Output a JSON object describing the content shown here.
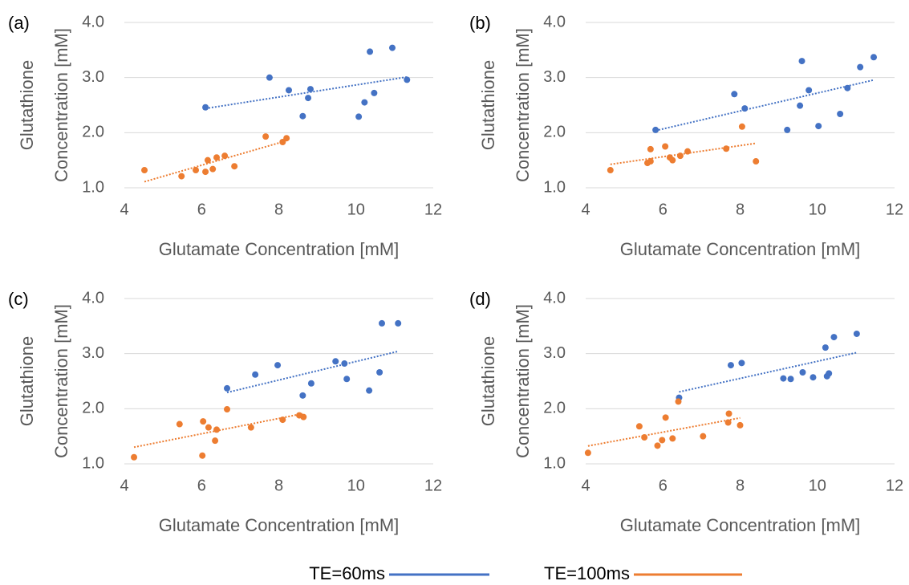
{
  "chart_data": [
    {
      "type": "scatter",
      "panel_label": "(a)",
      "xlabel": "Glutamate Concentration [mM]",
      "ylabel": [
        "Glutathione",
        "Concentration [mM]"
      ],
      "xlim": [
        4,
        12
      ],
      "ylim": [
        1,
        4
      ],
      "xticks": [
        4,
        6,
        8,
        10,
        12
      ],
      "yticks": [
        {
          "value": 1,
          "label": "1.0"
        },
        {
          "value": 2,
          "label": "2.0"
        },
        {
          "value": 3,
          "label": "3.0"
        },
        {
          "value": 4,
          "label": "4.0"
        }
      ],
      "grid": true,
      "trendline": "linear",
      "series": [
        {
          "color": "#4472c4",
          "x": [
            6.1,
            7.76,
            8.26,
            8.62,
            8.82,
            8.76,
            10.07,
            10.22,
            10.47,
            10.36,
            10.94,
            11.32
          ],
          "values": [
            2.46,
            3.0,
            2.77,
            2.3,
            2.79,
            2.63,
            2.29,
            2.55,
            2.72,
            3.47,
            3.54,
            2.96
          ]
        },
        {
          "color": "#ed7d31",
          "x": [
            4.52,
            5.48,
            5.85,
            6.16,
            6.1,
            6.29,
            6.39,
            6.6,
            6.85,
            7.66,
            8.1,
            8.2
          ],
          "values": [
            1.32,
            1.21,
            1.32,
            1.5,
            1.29,
            1.34,
            1.55,
            1.58,
            1.39,
            1.93,
            1.83,
            1.9
          ]
        }
      ]
    },
    {
      "type": "scatter",
      "panel_label": "(b)",
      "xlabel": "Glutamate Concentration [mM]",
      "ylabel": [
        "Glutathione",
        "Concentration [mM]"
      ],
      "xlim": [
        4,
        12
      ],
      "ylim": [
        1,
        4
      ],
      "xticks": [
        4,
        6,
        8,
        10,
        12
      ],
      "yticks": [
        {
          "value": 1,
          "label": "1.0"
        },
        {
          "value": 2,
          "label": "2.0"
        },
        {
          "value": 3,
          "label": "3.0"
        },
        {
          "value": 4,
          "label": "4.0"
        }
      ],
      "grid": true,
      "trendline": "linear",
      "series": [
        {
          "color": "#4472c4",
          "x": [
            5.81,
            7.85,
            8.12,
            9.22,
            9.55,
            9.6,
            9.78,
            10.03,
            10.59,
            10.78,
            11.11,
            11.46
          ],
          "values": [
            2.05,
            2.7,
            2.44,
            2.05,
            2.49,
            3.3,
            2.77,
            2.12,
            2.34,
            2.81,
            3.19,
            3.37
          ]
        },
        {
          "color": "#ed7d31",
          "x": [
            4.64,
            5.6,
            5.68,
            5.68,
            6.06,
            6.18,
            6.25,
            6.45,
            6.64,
            7.64,
            8.05,
            8.41
          ],
          "values": [
            1.32,
            1.45,
            1.48,
            1.7,
            1.75,
            1.55,
            1.5,
            1.58,
            1.66,
            1.71,
            2.11,
            1.48
          ]
        }
      ]
    },
    {
      "type": "scatter",
      "panel_label": "(c)",
      "xlabel": "Glutamate Concentration [mM]",
      "ylabel": [
        "Glutathione",
        "Concentration [mM]"
      ],
      "xlim": [
        4,
        12
      ],
      "ylim": [
        1,
        4
      ],
      "xticks": [
        4,
        6,
        8,
        10,
        12
      ],
      "yticks": [
        {
          "value": 1,
          "label": "1.0"
        },
        {
          "value": 2,
          "label": "2.0"
        },
        {
          "value": 3,
          "label": "3.0"
        },
        {
          "value": 4,
          "label": "4.0"
        }
      ],
      "grid": true,
      "trendline": "linear",
      "series": [
        {
          "color": "#4472c4",
          "x": [
            6.66,
            7.39,
            7.97,
            8.62,
            8.84,
            9.47,
            9.7,
            9.76,
            10.34,
            10.61,
            10.67,
            11.09
          ],
          "values": [
            2.37,
            2.62,
            2.79,
            2.24,
            2.46,
            2.86,
            2.82,
            2.54,
            2.33,
            2.66,
            3.55,
            3.55
          ]
        },
        {
          "color": "#ed7d31",
          "x": [
            4.25,
            5.43,
            6.04,
            6.02,
            6.18,
            6.35,
            6.39,
            6.66,
            7.28,
            8.1,
            8.53,
            8.64
          ],
          "values": [
            1.12,
            1.72,
            1.77,
            1.15,
            1.66,
            1.42,
            1.62,
            1.99,
            1.66,
            1.8,
            1.88,
            1.85
          ]
        }
      ]
    },
    {
      "type": "scatter",
      "panel_label": "(d)",
      "xlabel": "Glutamate Concentration [mM]",
      "ylabel": [
        "Glutathione",
        "Concentration [mM]"
      ],
      "xlim": [
        4,
        12
      ],
      "ylim": [
        1,
        4
      ],
      "xticks": [
        4,
        6,
        8,
        10,
        12
      ],
      "yticks": [
        {
          "value": 1,
          "label": "1.0"
        },
        {
          "value": 2,
          "label": "2.0"
        },
        {
          "value": 3,
          "label": "3.0"
        },
        {
          "value": 4,
          "label": "4.0"
        }
      ],
      "grid": true,
      "trendline": "linear",
      "series": [
        {
          "color": "#4472c4",
          "x": [
            6.42,
            7.76,
            8.04,
            9.12,
            9.31,
            9.62,
            9.89,
            10.21,
            10.25,
            10.3,
            10.43,
            11.02
          ],
          "values": [
            2.2,
            2.79,
            2.83,
            2.55,
            2.54,
            2.66,
            2.57,
            3.11,
            2.59,
            2.64,
            3.3,
            3.36
          ]
        },
        {
          "color": "#ed7d31",
          "x": [
            4.06,
            5.39,
            5.52,
            5.86,
            5.98,
            6.07,
            6.25,
            6.4,
            7.04,
            7.71,
            7.69,
            8.0
          ],
          "values": [
            1.2,
            1.68,
            1.48,
            1.33,
            1.43,
            1.84,
            1.46,
            2.13,
            1.5,
            1.91,
            1.75,
            1.7
          ]
        }
      ]
    }
  ],
  "legend": [
    {
      "name": "TE=60ms",
      "color": "#4472c4"
    },
    {
      "name": "TE=100ms",
      "color": "#ed7d31"
    }
  ]
}
